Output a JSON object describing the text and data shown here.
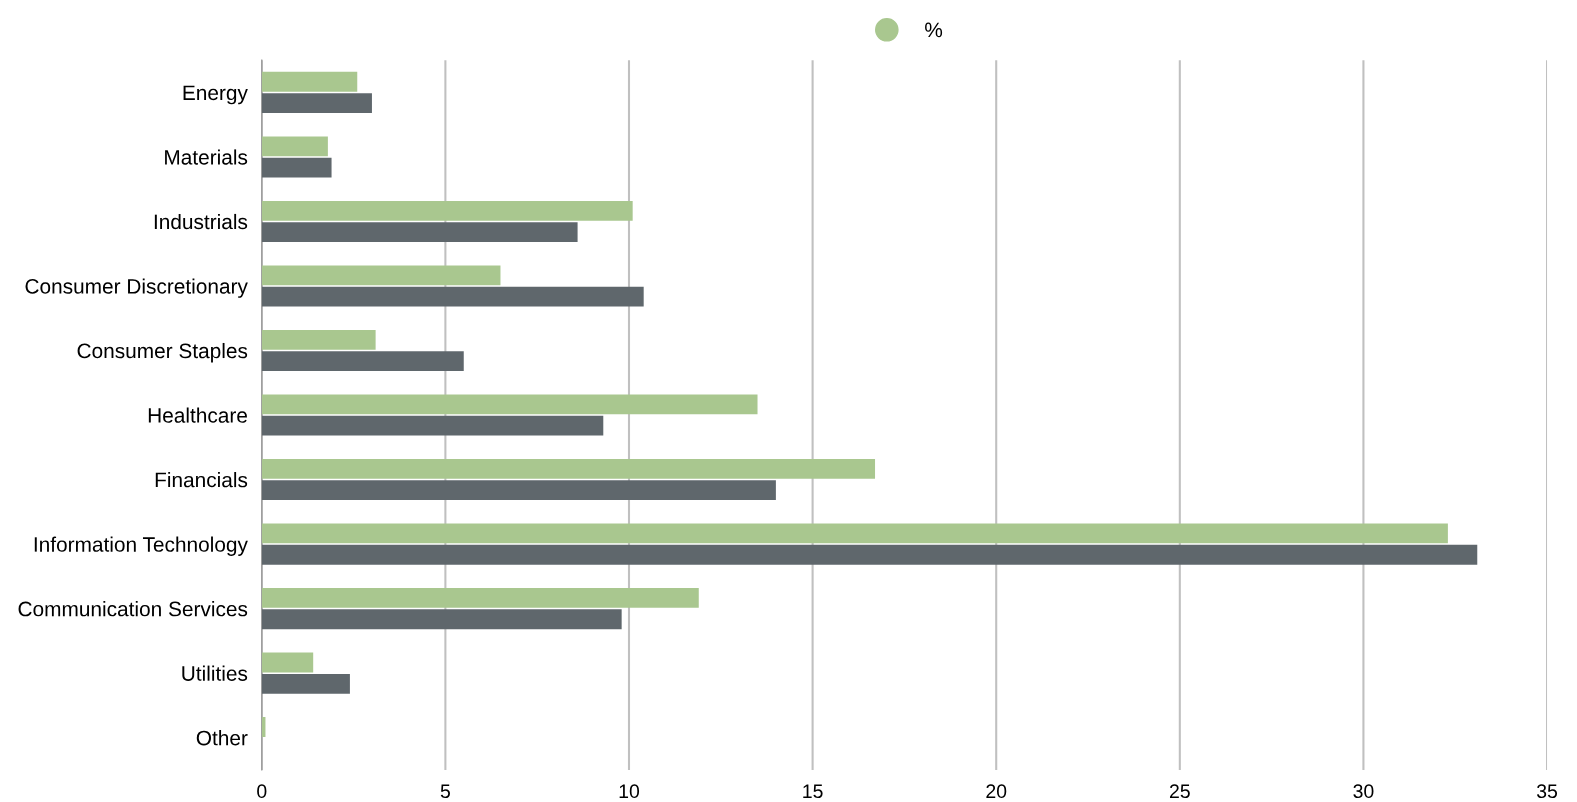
{
  "chart_data": {
    "type": "bar",
    "orientation": "horizontal",
    "categories": [
      "Energy",
      "Materials",
      "Industrials",
      "Consumer Discretionary",
      "Consumer Staples",
      "Healthcare",
      "Financials",
      "Information Technology",
      "Communication Services",
      "Utilities",
      "Other"
    ],
    "series": [
      {
        "name": "%",
        "color": "#a9c78f",
        "values": [
          2.6,
          1.8,
          10.1,
          6.5,
          3.1,
          13.5,
          16.7,
          32.3,
          11.9,
          1.4,
          0.1
        ]
      },
      {
        "color": "#5f676c",
        "values": [
          3.0,
          1.9,
          8.6,
          10.4,
          5.5,
          9.3,
          14.0,
          33.1,
          9.8,
          2.4,
          0
        ]
      }
    ],
    "xlim": [
      0,
      35
    ],
    "xticks": [
      0,
      5,
      10,
      15,
      20,
      25,
      30,
      35
    ],
    "grid": "x",
    "legend": "top"
  }
}
